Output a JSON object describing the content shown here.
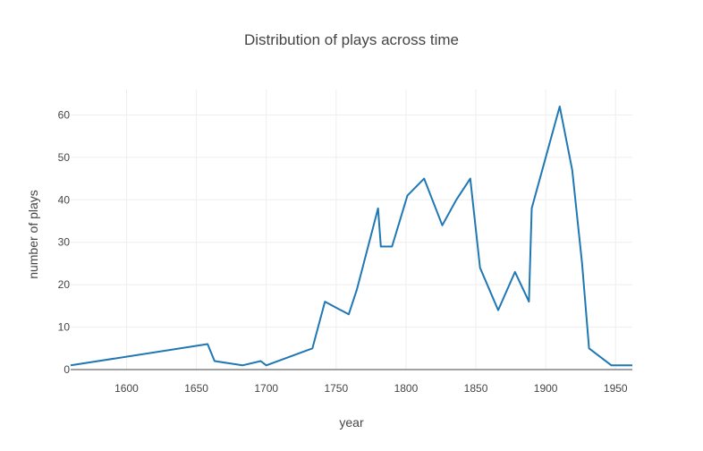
{
  "chart_data": {
    "type": "line",
    "title": "Distribution of plays across time",
    "xlabel": "year",
    "ylabel": "number of plays",
    "xlim": [
      1560,
      1962
    ],
    "ylim": [
      0,
      66
    ],
    "grid": true,
    "line_color": "#1f77b4",
    "x_ticks": [
      1600,
      1650,
      1700,
      1750,
      1800,
      1850,
      1900,
      1950
    ],
    "y_ticks": [
      0,
      10,
      20,
      30,
      40,
      50,
      60
    ],
    "series": [
      {
        "x": [
          1560,
          1658,
          1663,
          1683,
          1696,
          1700,
          1733,
          1742,
          1759,
          1765,
          1780,
          1782,
          1790,
          1801,
          1813,
          1826,
          1836,
          1846,
          1853,
          1866,
          1878,
          1888,
          1890,
          1910,
          1919,
          1926,
          1931,
          1947,
          1962
        ],
        "y": [
          1,
          6,
          2,
          1,
          2,
          1,
          5,
          16,
          13,
          19,
          38,
          29,
          29,
          41,
          45,
          34,
          40,
          45,
          24,
          14,
          23,
          16,
          38,
          62,
          47,
          25,
          5,
          1,
          1
        ]
      }
    ]
  }
}
